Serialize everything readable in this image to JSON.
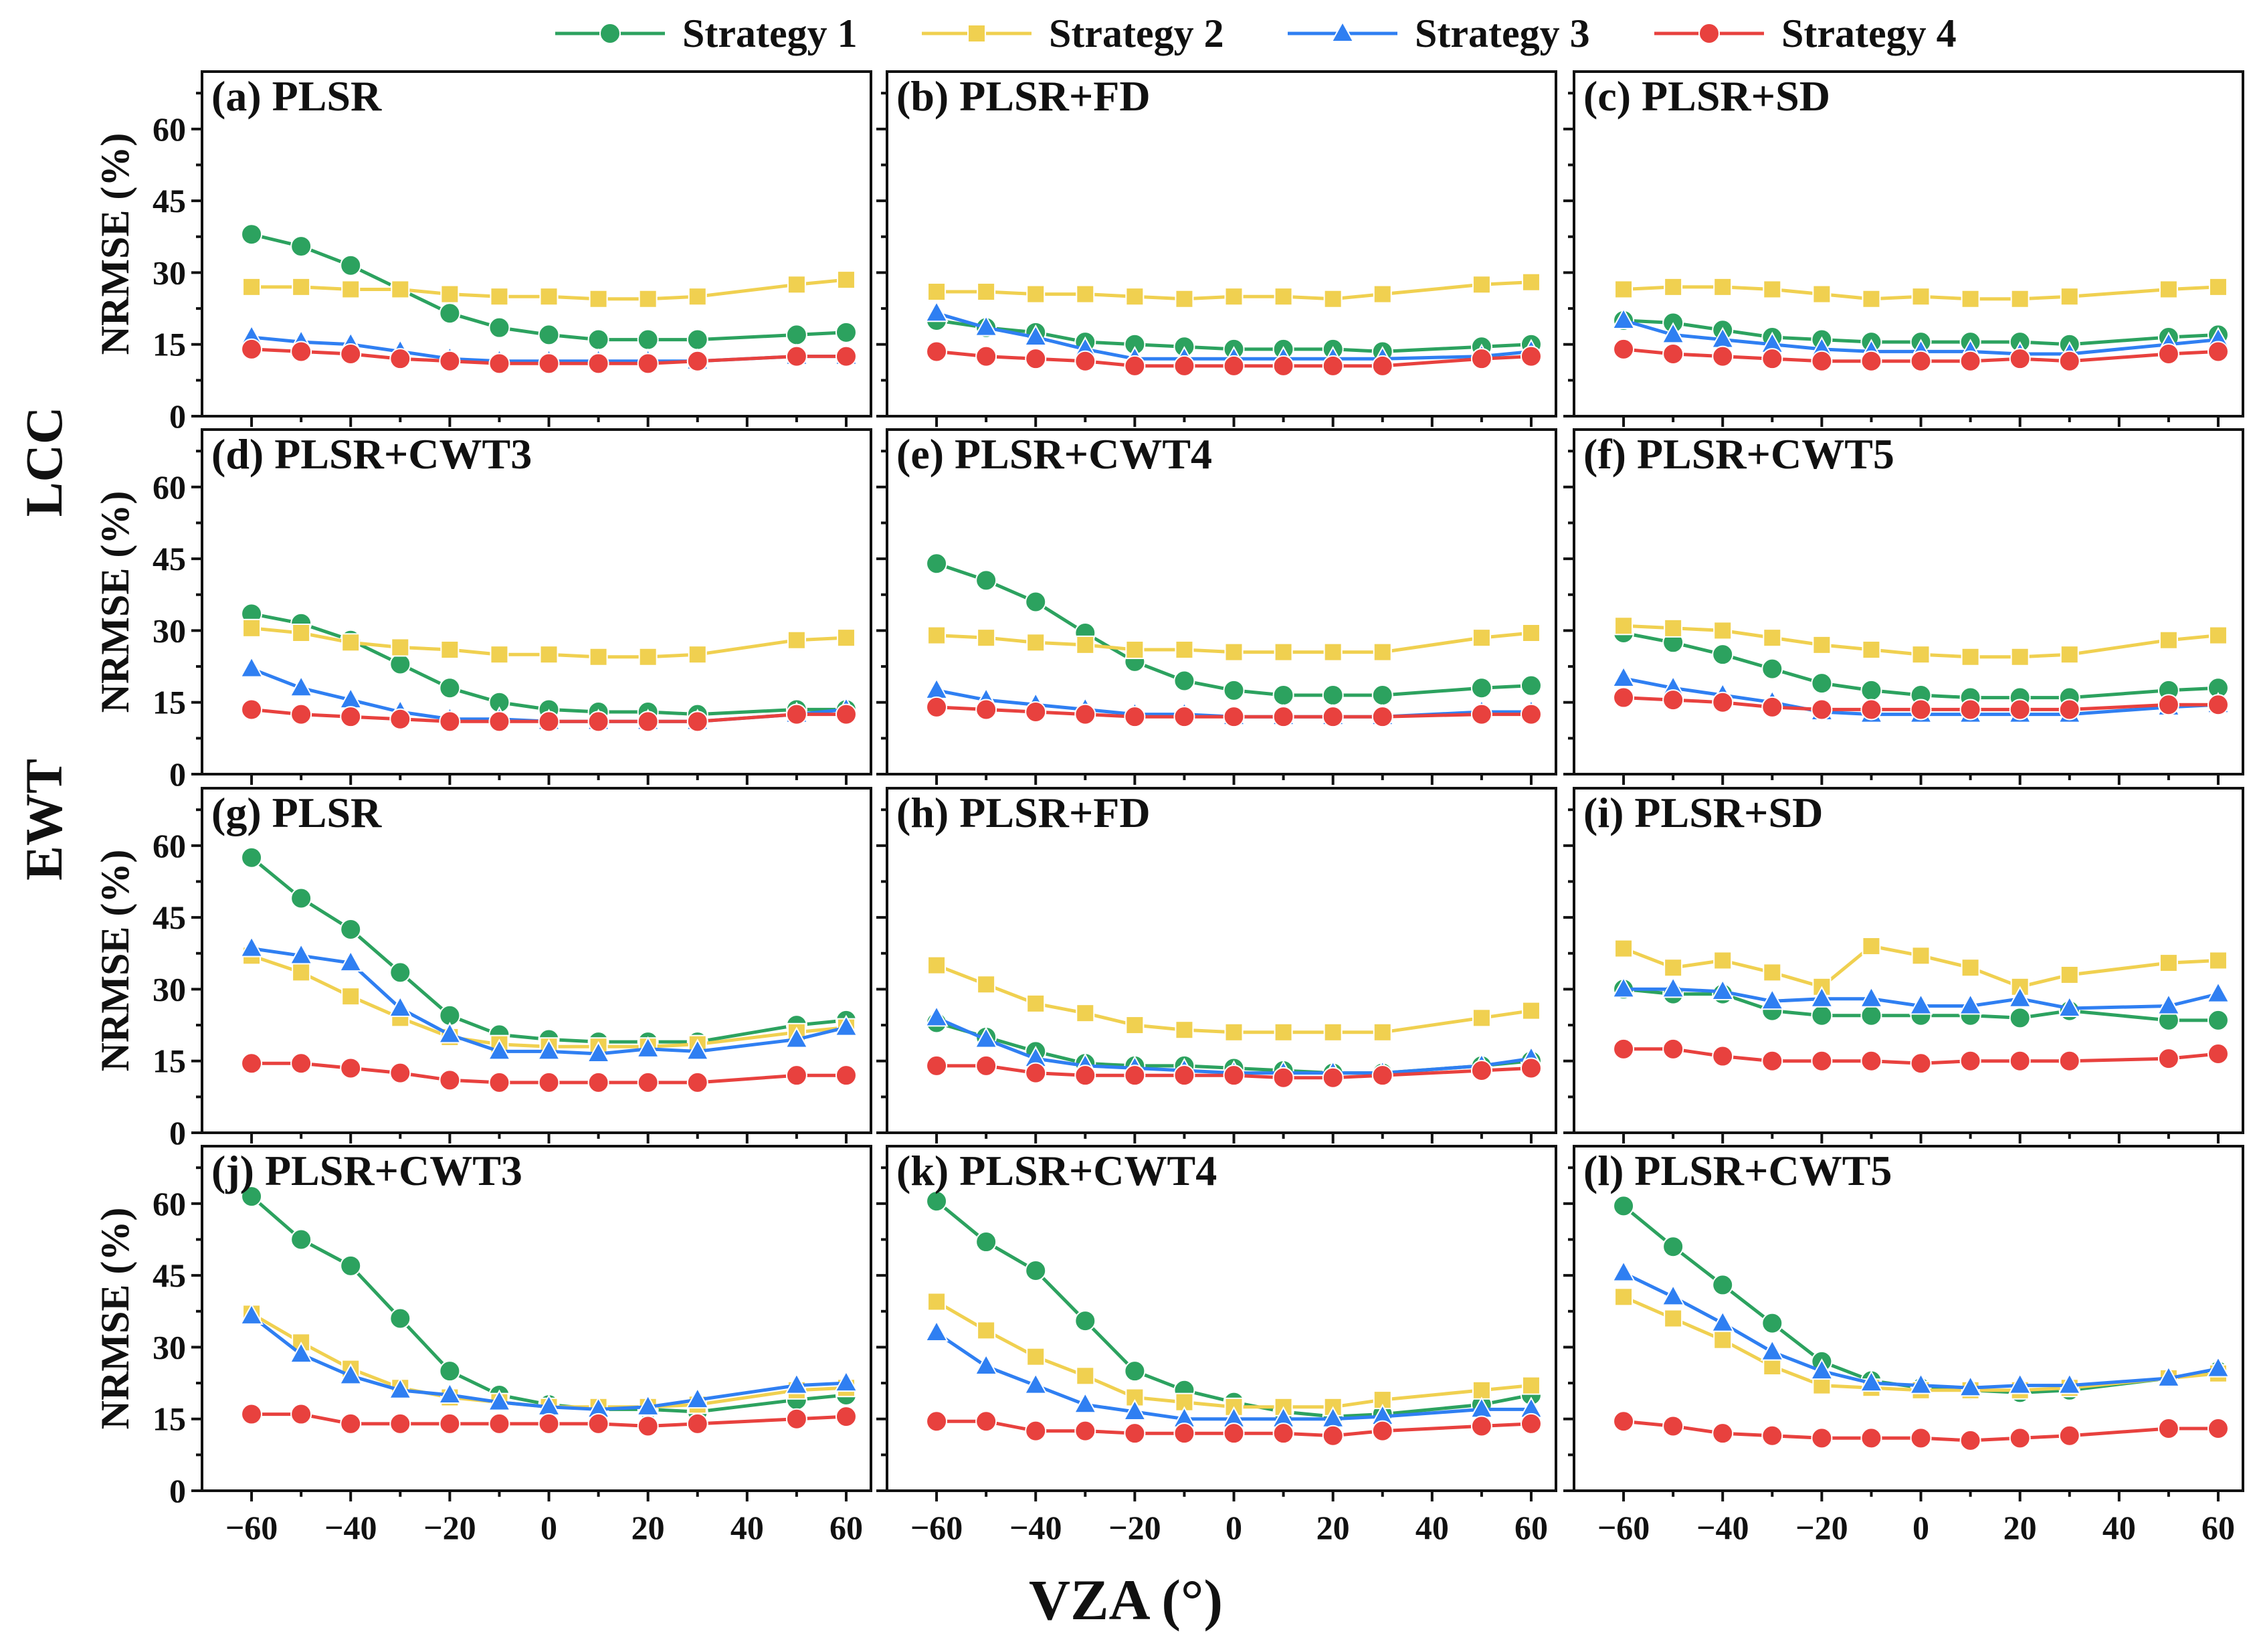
{
  "legend": [
    {
      "name": "Strategy 1",
      "color": "#2ca25f",
      "marker": "circle"
    },
    {
      "name": "Strategy 2",
      "color": "#f0d050",
      "marker": "square"
    },
    {
      "name": "Strategy 3",
      "color": "#2f7ff2",
      "marker": "triangle"
    },
    {
      "name": "Strategy 4",
      "color": "#e8413e",
      "marker": "circle"
    }
  ],
  "row_labels": [
    "LCC",
    "EWT"
  ],
  "chart_data": {
    "type": "line",
    "xlabel": "VZA (°)",
    "ylabel": "NRMSE (%)",
    "x": [
      -60,
      -50,
      -40,
      -30,
      -20,
      -10,
      0,
      10,
      20,
      30,
      50,
      60
    ],
    "xlim": [
      -70,
      65
    ],
    "ylim": [
      0,
      72
    ],
    "xticks": [
      -60,
      -40,
      -20,
      0,
      20,
      40,
      60
    ],
    "yticks": [
      0,
      15,
      30,
      45,
      60
    ],
    "panels": [
      {
        "label": "(a) PLSR",
        "series": [
          {
            "name": "Strategy 1",
            "values": [
              38,
              35.5,
              31.5,
              26.5,
              21.5,
              18.5,
              17,
              16,
              16,
              16,
              17,
              17.5
            ]
          },
          {
            "name": "Strategy 2",
            "values": [
              27,
              27,
              26.5,
              26.5,
              25.5,
              25,
              25,
              24.5,
              24.5,
              25,
              27.5,
              28.5
            ]
          },
          {
            "name": "Strategy 3",
            "values": [
              16.5,
              15.5,
              15,
              13.5,
              12,
              11.5,
              11.5,
              11.5,
              11.5,
              11.5,
              12.5,
              12.5
            ]
          },
          {
            "name": "Strategy 4",
            "values": [
              14,
              13.5,
              13,
              12,
              11.5,
              11,
              11,
              11,
              11,
              11.5,
              12.5,
              12.5
            ]
          }
        ]
      },
      {
        "label": "(b) PLSR+FD",
        "series": [
          {
            "name": "Strategy 1",
            "values": [
              20,
              18.5,
              17.5,
              15.5,
              15,
              14.5,
              14,
              14,
              14,
              13.5,
              14.5,
              15
            ]
          },
          {
            "name": "Strategy 2",
            "values": [
              26,
              26,
              25.5,
              25.5,
              25,
              24.5,
              25,
              25,
              24.5,
              25.5,
              27.5,
              28
            ]
          },
          {
            "name": "Strategy 3",
            "values": [
              21.5,
              18.5,
              16.5,
              14,
              12,
              12,
              12,
              12,
              12,
              12,
              12.5,
              13.5
            ]
          },
          {
            "name": "Strategy 4",
            "values": [
              13.5,
              12.5,
              12,
              11.5,
              10.5,
              10.5,
              10.5,
              10.5,
              10.5,
              10.5,
              12,
              12.5
            ]
          }
        ]
      },
      {
        "label": "(c) PLSR+SD",
        "series": [
          {
            "name": "Strategy 1",
            "values": [
              20,
              19.5,
              18,
              16.5,
              16,
              15.5,
              15.5,
              15.5,
              15.5,
              15,
              16.5,
              17
            ]
          },
          {
            "name": "Strategy 2",
            "values": [
              26.5,
              27,
              27,
              26.5,
              25.5,
              24.5,
              25,
              24.5,
              24.5,
              25,
              26.5,
              27
            ]
          },
          {
            "name": "Strategy 3",
            "values": [
              20,
              17,
              16,
              15,
              14,
              13.5,
              13.5,
              13.5,
              13,
              13,
              15,
              16
            ]
          },
          {
            "name": "Strategy 4",
            "values": [
              14,
              13,
              12.5,
              12,
              11.5,
              11.5,
              11.5,
              11.5,
              12,
              11.5,
              13,
              13.5
            ]
          }
        ]
      },
      {
        "label": "(d) PLSR+CWT3",
        "series": [
          {
            "name": "Strategy 1",
            "values": [
              33.5,
              31.5,
              28,
              23,
              18,
              15,
              13.5,
              13,
              13,
              12.5,
              13.5,
              13.5
            ]
          },
          {
            "name": "Strategy 2",
            "values": [
              30.5,
              29.5,
              27.5,
              26.5,
              26,
              25,
              25,
              24.5,
              24.5,
              25,
              28,
              28.5
            ]
          },
          {
            "name": "Strategy 3",
            "values": [
              22,
              18,
              15.5,
              13,
              11.5,
              11.5,
              11,
              11,
              11,
              11,
              12.5,
              13.5
            ]
          },
          {
            "name": "Strategy 4",
            "values": [
              13.5,
              12.5,
              12,
              11.5,
              11,
              11,
              11,
              11,
              11,
              11,
              12.5,
              12.5
            ]
          }
        ]
      },
      {
        "label": "(e) PLSR+CWT4",
        "series": [
          {
            "name": "Strategy 1",
            "values": [
              44,
              40.5,
              36,
              29.5,
              23.5,
              19.5,
              17.5,
              16.5,
              16.5,
              16.5,
              18,
              18.5
            ]
          },
          {
            "name": "Strategy 2",
            "values": [
              29,
              28.5,
              27.5,
              27,
              26,
              26,
              25.5,
              25.5,
              25.5,
              25.5,
              28.5,
              29.5
            ]
          },
          {
            "name": "Strategy 3",
            "values": [
              17.5,
              15.5,
              14.5,
              13.5,
              12.5,
              12.5,
              12,
              12,
              12,
              12,
              13,
              13
            ]
          },
          {
            "name": "Strategy 4",
            "values": [
              14,
              13.5,
              13,
              12.5,
              12,
              12,
              12,
              12,
              12,
              12,
              12.5,
              12.5
            ]
          }
        ]
      },
      {
        "label": "(f) PLSR+CWT5",
        "series": [
          {
            "name": "Strategy 1",
            "values": [
              29.5,
              27.5,
              25,
              22,
              19,
              17.5,
              16.5,
              16,
              16,
              16,
              17.5,
              18
            ]
          },
          {
            "name": "Strategy 2",
            "values": [
              31,
              30.5,
              30,
              28.5,
              27,
              26,
              25,
              24.5,
              24.5,
              25,
              28,
              29
            ]
          },
          {
            "name": "Strategy 3",
            "values": [
              20,
              18,
              16.5,
              15,
              13,
              12.5,
              12.5,
              12.5,
              12.5,
              12.5,
              14,
              14.5
            ]
          },
          {
            "name": "Strategy 4",
            "values": [
              16,
              15.5,
              15,
              14,
              13.5,
              13.5,
              13.5,
              13.5,
              13.5,
              13.5,
              14.5,
              14.5
            ]
          }
        ]
      },
      {
        "label": "(g) PLSR",
        "series": [
          {
            "name": "Strategy 1",
            "values": [
              57.5,
              49,
              42.5,
              33.5,
              24.5,
              20.5,
              19.5,
              19,
              19,
              19,
              22.5,
              23.5
            ]
          },
          {
            "name": "Strategy 2",
            "values": [
              37,
              33.5,
              28.5,
              24,
              20,
              18.5,
              18,
              18,
              18,
              18.5,
              21,
              22
            ]
          },
          {
            "name": "Strategy 3",
            "values": [
              38.5,
              37,
              35.5,
              26,
              20.5,
              17,
              17,
              16.5,
              17.5,
              17,
              19.5,
              22
            ]
          },
          {
            "name": "Strategy 4",
            "values": [
              14.5,
              14.5,
              13.5,
              12.5,
              11,
              10.5,
              10.5,
              10.5,
              10.5,
              10.5,
              12,
              12
            ]
          }
        ]
      },
      {
        "label": "(h) PLSR+FD",
        "series": [
          {
            "name": "Strategy 1",
            "values": [
              23,
              20,
              17,
              14.5,
              14,
              14,
              13.5,
              13,
              12.5,
              12.5,
              14,
              15
            ]
          },
          {
            "name": "Strategy 2",
            "values": [
              35,
              31,
              27,
              25,
              22.5,
              21.5,
              21,
              21,
              21,
              21,
              24,
              25.5
            ]
          },
          {
            "name": "Strategy 3",
            "values": [
              24,
              19.5,
              15.5,
              14,
              13.5,
              13,
              12.5,
              12.5,
              12.5,
              12.5,
              14,
              15.5
            ]
          },
          {
            "name": "Strategy 4",
            "values": [
              14,
              14,
              12.5,
              12,
              12,
              12,
              12,
              11.5,
              11.5,
              12,
              13,
              13.5
            ]
          }
        ]
      },
      {
        "label": "(i) PLSR+SD",
        "series": [
          {
            "name": "Strategy 1",
            "values": [
              30,
              29,
              29,
              25.5,
              24.5,
              24.5,
              24.5,
              24.5,
              24,
              25.5,
              23.5,
              23.5
            ]
          },
          {
            "name": "Strategy 2",
            "values": [
              38.5,
              34.5,
              36,
              33.5,
              30.5,
              39,
              37,
              34.5,
              30.5,
              33,
              35.5,
              36
            ]
          },
          {
            "name": "Strategy 3",
            "values": [
              30,
              30,
              29.5,
              27.5,
              28,
              28,
              26.5,
              26.5,
              28,
              26,
              26.5,
              29
            ]
          },
          {
            "name": "Strategy 4",
            "values": [
              17.5,
              17.5,
              16,
              15,
              15,
              15,
              14.5,
              15,
              15,
              15,
              15.5,
              16.5
            ]
          }
        ]
      },
      {
        "label": "(j) PLSR+CWT3",
        "series": [
          {
            "name": "Strategy 1",
            "values": [
              61.5,
              52.5,
              47,
              36,
              25,
              20,
              18,
              17,
              17,
              16.5,
              19,
              20
            ]
          },
          {
            "name": "Strategy 2",
            "values": [
              37,
              31,
              25.5,
              21.5,
              19.5,
              18.5,
              17.5,
              17.5,
              17.5,
              18,
              21,
              21.5
            ]
          },
          {
            "name": "Strategy 3",
            "values": [
              36.5,
              28.5,
              24,
              21,
              20,
              18.5,
              17.5,
              17,
              17.5,
              19,
              22,
              22.5
            ]
          },
          {
            "name": "Strategy 4",
            "values": [
              16,
              16,
              14,
              14,
              14,
              14,
              14,
              14,
              13.5,
              14,
              15,
              15.5
            ]
          }
        ]
      },
      {
        "label": "(k) PLSR+CWT4",
        "series": [
          {
            "name": "Strategy 1",
            "values": [
              60.5,
              52,
              46,
              35.5,
              25,
              21,
              18.5,
              16.5,
              15.5,
              16,
              18,
              20
            ]
          },
          {
            "name": "Strategy 2",
            "values": [
              39.5,
              33.5,
              28,
              24,
              19.5,
              18.5,
              17.5,
              17.5,
              17.5,
              19,
              21,
              22
            ]
          },
          {
            "name": "Strategy 3",
            "values": [
              33,
              26,
              22,
              18,
              16.5,
              15,
              15,
              15,
              15,
              15.5,
              17,
              17
            ]
          },
          {
            "name": "Strategy 4",
            "values": [
              14.5,
              14.5,
              12.5,
              12.5,
              12,
              12,
              12,
              12,
              11.5,
              12.5,
              13.5,
              14
            ]
          }
        ]
      },
      {
        "label": "(l) PLSR+CWT5",
        "series": [
          {
            "name": "Strategy 1",
            "values": [
              59.5,
              51,
              43,
              35,
              27,
              23,
              21.5,
              21,
              20.5,
              21,
              23.5,
              25
            ]
          },
          {
            "name": "Strategy 2",
            "values": [
              40.5,
              36,
              31.5,
              26,
              22,
              21.5,
              21,
              21,
              21,
              21.5,
              23.5,
              24.5
            ]
          },
          {
            "name": "Strategy 3",
            "values": [
              45.5,
              40.5,
              35,
              29,
              25,
              22.5,
              22,
              21.5,
              22,
              22,
              23.5,
              25.5
            ]
          },
          {
            "name": "Strategy 4",
            "values": [
              14.5,
              13.5,
              12,
              11.5,
              11,
              11,
              11,
              10.5,
              11,
              11.5,
              13,
              13
            ]
          }
        ]
      }
    ]
  }
}
